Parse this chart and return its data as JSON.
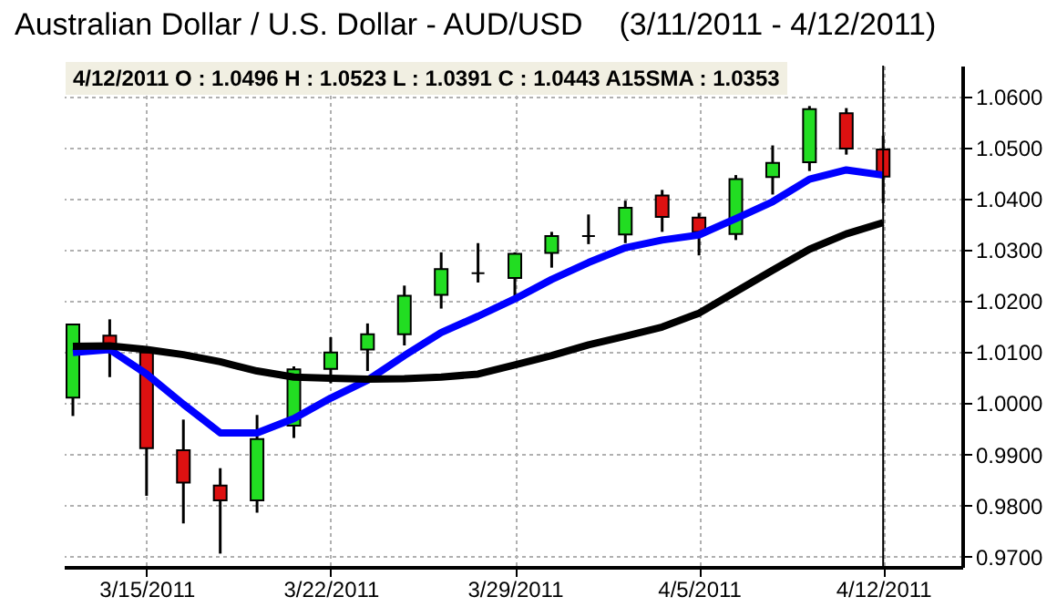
{
  "chart_data": {
    "type": "candlestick",
    "title": "Australian Dollar / U.S. Dollar -  AUD/USD",
    "subtitle": "(3/11/2011 - 4/12/2011)",
    "annotations": [
      "4/12/2011 O : 1.0496 H : 1.0523 L : 1.0391 C : 1.0443 A15SMA : 1.0353"
    ],
    "categories": [
      null,
      null,
      "3/15/2011",
      null,
      null,
      null,
      null,
      "3/22/2011",
      null,
      null,
      null,
      null,
      "3/29/2011",
      null,
      null,
      null,
      null,
      "4/5/2011",
      null,
      null,
      null,
      null,
      "4/12/2011"
    ],
    "ohlc": [
      [
        1.0011,
        1.0155,
        0.9975,
        1.0154
      ],
      [
        1.0132,
        1.0164,
        1.0051,
        1.0114
      ],
      [
        1.0099,
        1.01,
        0.9819,
        0.9912
      ],
      [
        0.9908,
        0.9968,
        0.9765,
        0.9845
      ],
      [
        0.9839,
        0.9873,
        0.9706,
        0.981
      ],
      [
        0.981,
        0.9977,
        0.9786,
        0.993
      ],
      [
        0.9956,
        1.0072,
        0.9932,
        1.0066
      ],
      [
        1.0067,
        1.0129,
        1.0039,
        1.0099
      ],
      [
        1.0105,
        1.0156,
        1.0063,
        1.0135
      ],
      [
        1.0135,
        1.023,
        1.0113,
        1.021
      ],
      [
        1.0212,
        1.0295,
        1.0185,
        1.0262
      ],
      [
        1.0254,
        1.0313,
        1.0236,
        1.0254
      ],
      [
        1.0245,
        1.0295,
        1.0206,
        1.0292
      ],
      [
        1.0294,
        1.0335,
        1.0265,
        1.0327
      ],
      [
        1.0327,
        1.0369,
        1.0311,
        1.0327
      ],
      [
        1.033,
        1.0396,
        1.0313,
        1.0382
      ],
      [
        1.0406,
        1.0417,
        1.0335,
        1.0364
      ],
      [
        1.0363,
        1.0372,
        1.0289,
        1.0335
      ],
      [
        1.0331,
        1.0446,
        1.0319,
        1.0438
      ],
      [
        1.0442,
        1.0504,
        1.0408,
        1.047
      ],
      [
        1.0471,
        1.0581,
        1.0454,
        1.0575
      ],
      [
        1.0567,
        1.0577,
        1.0486,
        1.0498
      ],
      [
        1.0496,
        1.0523,
        1.0391,
        1.0443
      ]
    ],
    "series": [
      {
        "type": "line",
        "color": "#0000ff",
        "values": [
          1.0099,
          1.0105,
          1.0057,
          0.9998,
          0.9942,
          0.9942,
          0.997,
          1.001,
          1.0045,
          1.0093,
          1.0138,
          1.017,
          1.0204,
          1.0242,
          1.0275,
          1.0304,
          1.0319,
          1.0329,
          1.0361,
          1.0394,
          1.0438,
          1.0456,
          1.0446
        ]
      },
      {
        "type": "line",
        "color": "#000000",
        "values": [
          1.0111,
          1.0112,
          1.0105,
          1.0095,
          1.0081,
          1.0063,
          1.0051,
          1.0049,
          1.0047,
          1.0048,
          1.0051,
          1.0057,
          1.0075,
          1.0093,
          1.0114,
          1.0131,
          1.0149,
          1.0176,
          1.0218,
          1.026,
          1.0301,
          1.0331,
          1.0353
        ]
      }
    ],
    "ylim": [
      0.968,
      1.066
    ],
    "yticks": [
      {
        "value": 0.97,
        "label": "0.9700"
      },
      {
        "value": 0.98,
        "label": "0.9800"
      },
      {
        "value": 0.99,
        "label": "0.9900"
      },
      {
        "value": 1.0,
        "label": "1.0000"
      },
      {
        "value": 1.01,
        "label": "1.0100"
      },
      {
        "value": 1.02,
        "label": "1.0200"
      },
      {
        "value": 1.03,
        "label": "1.0300"
      },
      {
        "value": 1.04,
        "label": "1.0400"
      },
      {
        "value": 1.05,
        "label": "1.0500"
      },
      {
        "value": 1.06,
        "label": "1.0600"
      }
    ],
    "ref_lines": [
      {
        "axis": "x",
        "value": "4/12/2011"
      }
    ],
    "grid": true
  }
}
